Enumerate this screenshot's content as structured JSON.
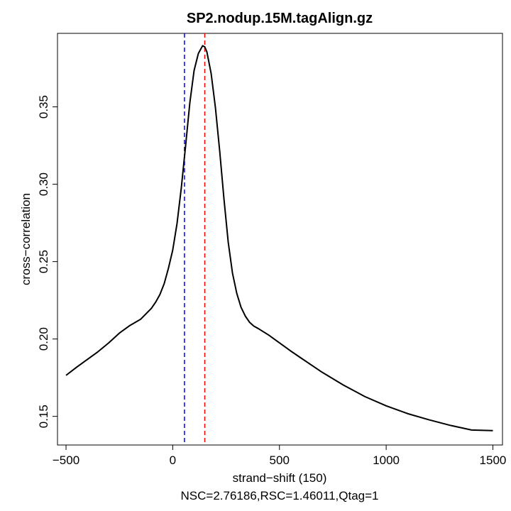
{
  "chart_data": {
    "type": "line",
    "title": "SP2.nodup.15M.tagAlign.gz",
    "xlabel": "strand−shift (150)",
    "subtitle": "NSC=2.76186,RSC=1.46011,Qtag=1",
    "ylabel": "cross−correlation",
    "xlim": [
      -540,
      1545
    ],
    "ylim": [
      0.1315,
      0.3975
    ],
    "x_ticks": [
      -500,
      0,
      500,
      1000,
      1500
    ],
    "x_tick_labels": [
      "−500",
      "0",
      "500",
      "1000",
      "1500"
    ],
    "y_ticks": [
      0.15,
      0.2,
      0.25,
      0.3,
      0.35
    ],
    "y_tick_labels": [
      "0.15",
      "0.20",
      "0.25",
      "0.30",
      "0.35"
    ],
    "grid": false,
    "series": [
      {
        "color": "#000000",
        "x": [
          -500,
          -450,
          -400,
          -350,
          -300,
          -250,
          -200,
          -150,
          -100,
          -80,
          -60,
          -40,
          -20,
          0,
          20,
          40,
          60,
          80,
          100,
          120,
          140,
          150,
          160,
          180,
          200,
          220,
          240,
          260,
          280,
          300,
          320,
          340,
          360,
          380,
          400,
          450,
          500,
          550,
          600,
          700,
          800,
          900,
          1000,
          1100,
          1200,
          1300,
          1400,
          1500
        ],
        "y": [
          0.1765,
          0.1818,
          0.1868,
          0.1918,
          0.1975,
          0.2038,
          0.2088,
          0.2128,
          0.2198,
          0.2238,
          0.2288,
          0.2358,
          0.2458,
          0.2575,
          0.2745,
          0.2975,
          0.3245,
          0.3525,
          0.3735,
          0.3845,
          0.3895,
          0.3888,
          0.3855,
          0.3715,
          0.3495,
          0.3215,
          0.2905,
          0.2625,
          0.2425,
          0.2295,
          0.2205,
          0.2148,
          0.2108,
          0.2083,
          0.2068,
          0.2025,
          0.1975,
          0.1925,
          0.1878,
          0.1785,
          0.1702,
          0.1628,
          0.1568,
          0.1518,
          0.1478,
          0.1442,
          0.1412,
          0.1408
        ]
      }
    ],
    "reference_lines": [
      {
        "x": 55,
        "color": "#0000ff",
        "style": "dashed"
      },
      {
        "x": 150,
        "color": "#ff0000",
        "style": "dashed"
      }
    ]
  }
}
